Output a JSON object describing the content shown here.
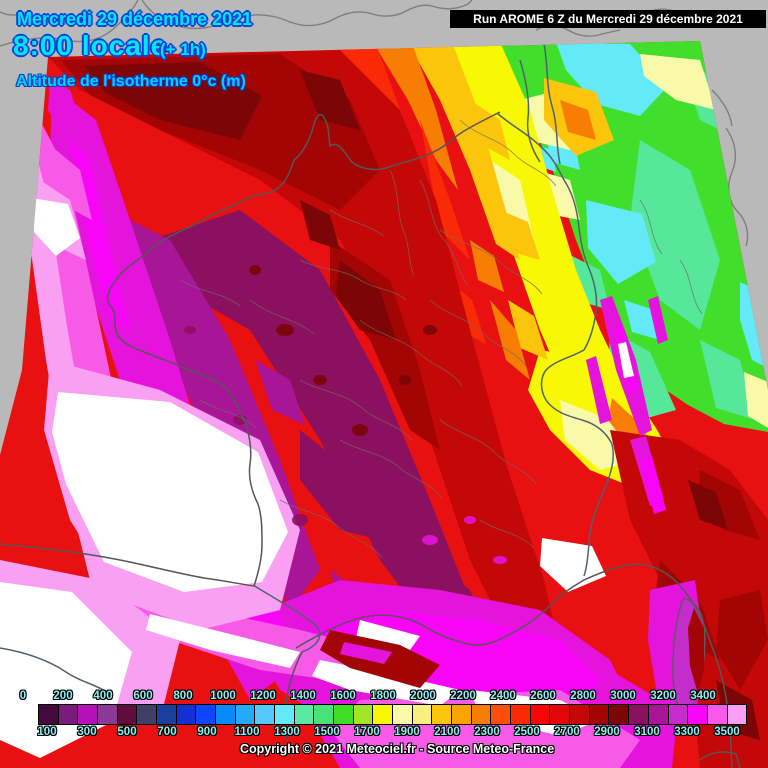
{
  "header": {
    "date": "Mercredi 29 décembre 2021",
    "time": "8:00 locale",
    "offset": "(+ 1h)",
    "subtitle": "Altitude de l'isotherme 0°c (m)",
    "run": "Run AROME 6 Z du Mercredi 29 décembre 2021"
  },
  "footer": {
    "copyright": "Copyright © 2021 Meteociel.fr - Source Meteo-France"
  },
  "legend": {
    "unit": "m",
    "top_labels": [
      "0",
      "200",
      "400",
      "600",
      "800",
      "1000",
      "1200",
      "1400",
      "1600",
      "1800",
      "2000",
      "2200",
      "2400",
      "2600",
      "2800",
      "3000",
      "3200",
      "3400"
    ],
    "bottom_labels": [
      "100",
      "300",
      "500",
      "700",
      "900",
      "1100",
      "1300",
      "1500",
      "1700",
      "1900",
      "2100",
      "2300",
      "2500",
      "2700",
      "2900",
      "3100",
      "3300",
      "3500"
    ],
    "colors": [
      "#45083f",
      "#7c1a7c",
      "#b611b6",
      "#8a3a96",
      "#600d3e",
      "#3f3f68",
      "#1a3f9e",
      "#1430d4",
      "#0d47fb",
      "#088af8",
      "#25aaf8",
      "#55c9f9",
      "#63e9f7",
      "#59e9a2",
      "#49e277",
      "#3fdd25",
      "#a3e626",
      "#f8f804",
      "#f8f9a9",
      "#f8ef7e",
      "#fbc50b",
      "#f9a403",
      "#f87d03",
      "#fb4e0b",
      "#fb2a06",
      "#f90505",
      "#e20808",
      "#c40808",
      "#a30505",
      "#7c0506",
      "#8c1060",
      "#a81596",
      "#c42ccc",
      "#f805f8",
      "#f85ae8",
      "#f9a0f2"
    ]
  }
}
